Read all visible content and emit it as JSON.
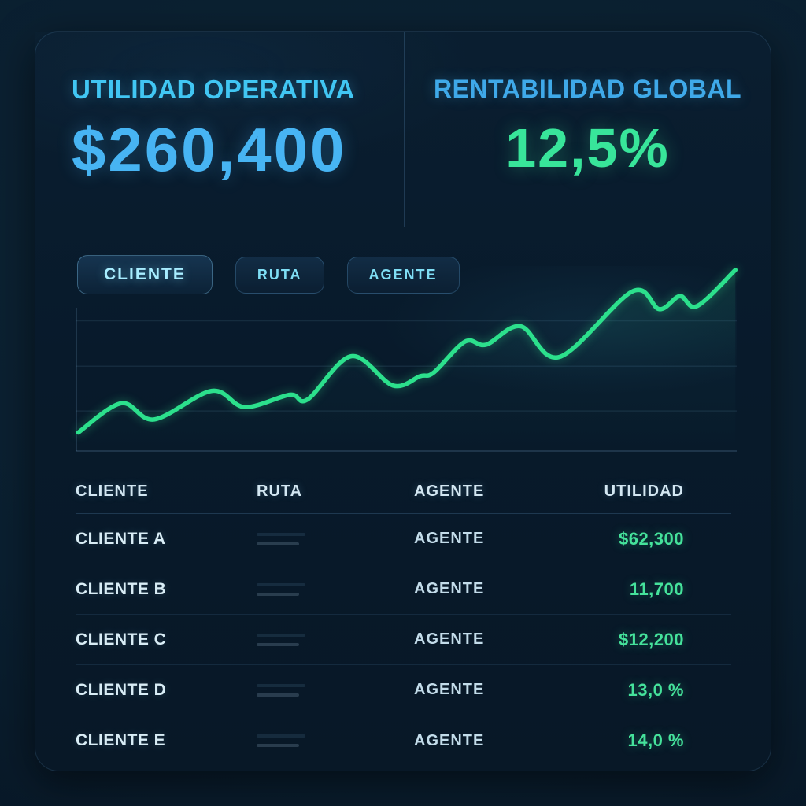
{
  "kpis": {
    "left": {
      "title": "UTILIDAD OPERATIVA",
      "value": "$260,400",
      "title_color": "#41c6f3",
      "value_color": "#47b4f3"
    },
    "right": {
      "title": "RENTABILIDAD GLOBAL",
      "value": "12,5%",
      "title_color": "#3fa9e9",
      "value_color": "#38e59a"
    }
  },
  "tabs": [
    {
      "label": "CLIENTE",
      "active": true
    },
    {
      "label": "RUTA",
      "active": false
    },
    {
      "label": "AGENTE",
      "active": false
    }
  ],
  "chart_data": {
    "type": "line",
    "title": "",
    "xlabel": "",
    "ylabel": "",
    "legend": "none",
    "axis_tick_labels": "none (sparkline-style utility trend)",
    "grid": "faint horizontal lines + left vertical axis",
    "xlim": [
      0,
      100
    ],
    "ylim": [
      0,
      240
    ],
    "gridlines_y": [
      0,
      52,
      110,
      169
    ],
    "x": [
      0.4,
      6.9,
      11.9,
      20.6,
      25.6,
      32.4,
      35.1,
      41.7,
      48.0,
      52.1,
      54.2,
      58.9,
      62.1,
      67.3,
      73.2,
      84.2,
      88.3,
      91.4,
      94.0,
      99.8
    ],
    "y": [
      24,
      62,
      41,
      78,
      57,
      73,
      67,
      123,
      85,
      97,
      102,
      142,
      138,
      162,
      122,
      207,
      184,
      201,
      188,
      235
    ],
    "line_color": "#2ce08c"
  },
  "table": {
    "columns": [
      "CLIENTE",
      "RUTA",
      "AGENTE",
      "UTILIDAD"
    ],
    "rows": [
      {
        "cliente": "CLIENTE A",
        "ruta": "",
        "agente": "AGENTE",
        "utilidad": "$62,300"
      },
      {
        "cliente": "CLIENTE B",
        "ruta": "",
        "agente": "AGENTE",
        "utilidad": "11,700"
      },
      {
        "cliente": "CLIENTE C",
        "ruta": "",
        "agente": "AGENTE",
        "utilidad": "$12,200"
      },
      {
        "cliente": "CLIENTE D",
        "ruta": "",
        "agente": "AGENTE",
        "utilidad": "13,0 %"
      },
      {
        "cliente": "CLIENTE E",
        "ruta": "",
        "agente": "AGENTE",
        "utilidad": "14,0 %"
      }
    ],
    "value_color": "#45e29b"
  },
  "colors": {
    "background": "#0a1f30",
    "card_background": "#081a2b",
    "divider": "rgba(110,170,220,0.22)",
    "grid_line": "rgba(140,195,235,0.10)",
    "axis_line": "rgba(140,195,235,0.22)",
    "tab_text": "#7fdef5",
    "tab_text_active": "#a8edff",
    "header_text": "#d3e7f2",
    "cell_text": "#d9edf6",
    "agente_text": "#c3dcea"
  }
}
